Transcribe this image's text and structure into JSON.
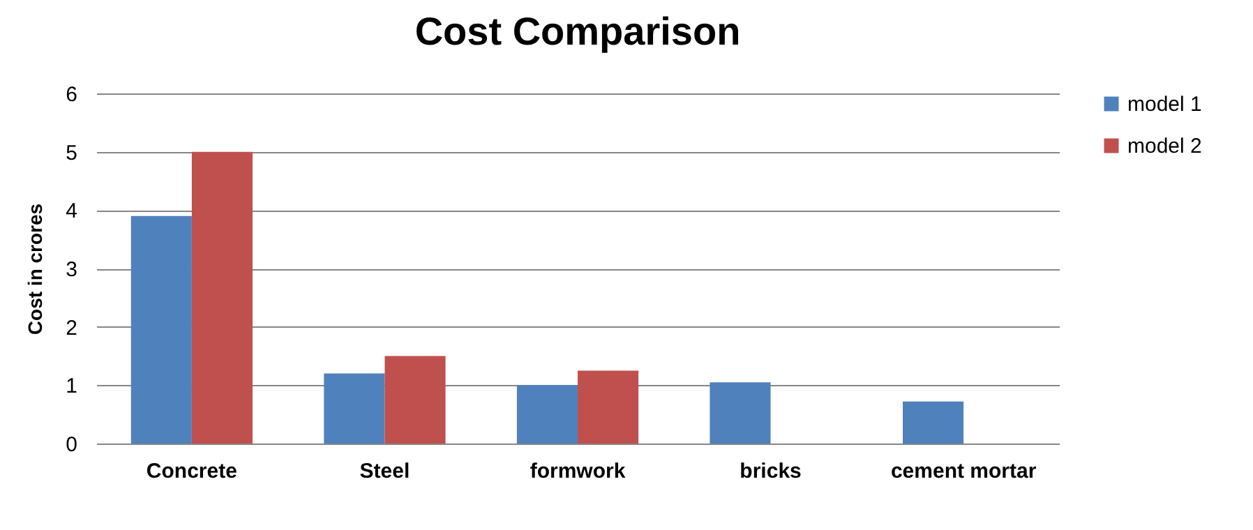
{
  "chart_data": {
    "type": "bar",
    "title": "Cost Comparison",
    "ylabel": "Cost in crores",
    "categories": [
      "Concrete",
      "Steel",
      "formwork",
      "bricks",
      "cement mortar"
    ],
    "series": [
      {
        "name": "model 1",
        "color": "#4f81bd",
        "values": [
          3.9,
          1.2,
          1.0,
          1.05,
          0.72
        ]
      },
      {
        "name": "model 2",
        "color": "#c0504d",
        "values": [
          5,
          1.5,
          1.25,
          null,
          null
        ]
      }
    ],
    "ylim": [
      0,
      6
    ],
    "yticks": [
      0,
      1,
      2,
      3,
      4,
      5,
      6
    ],
    "grid": "y",
    "legend": "right"
  }
}
